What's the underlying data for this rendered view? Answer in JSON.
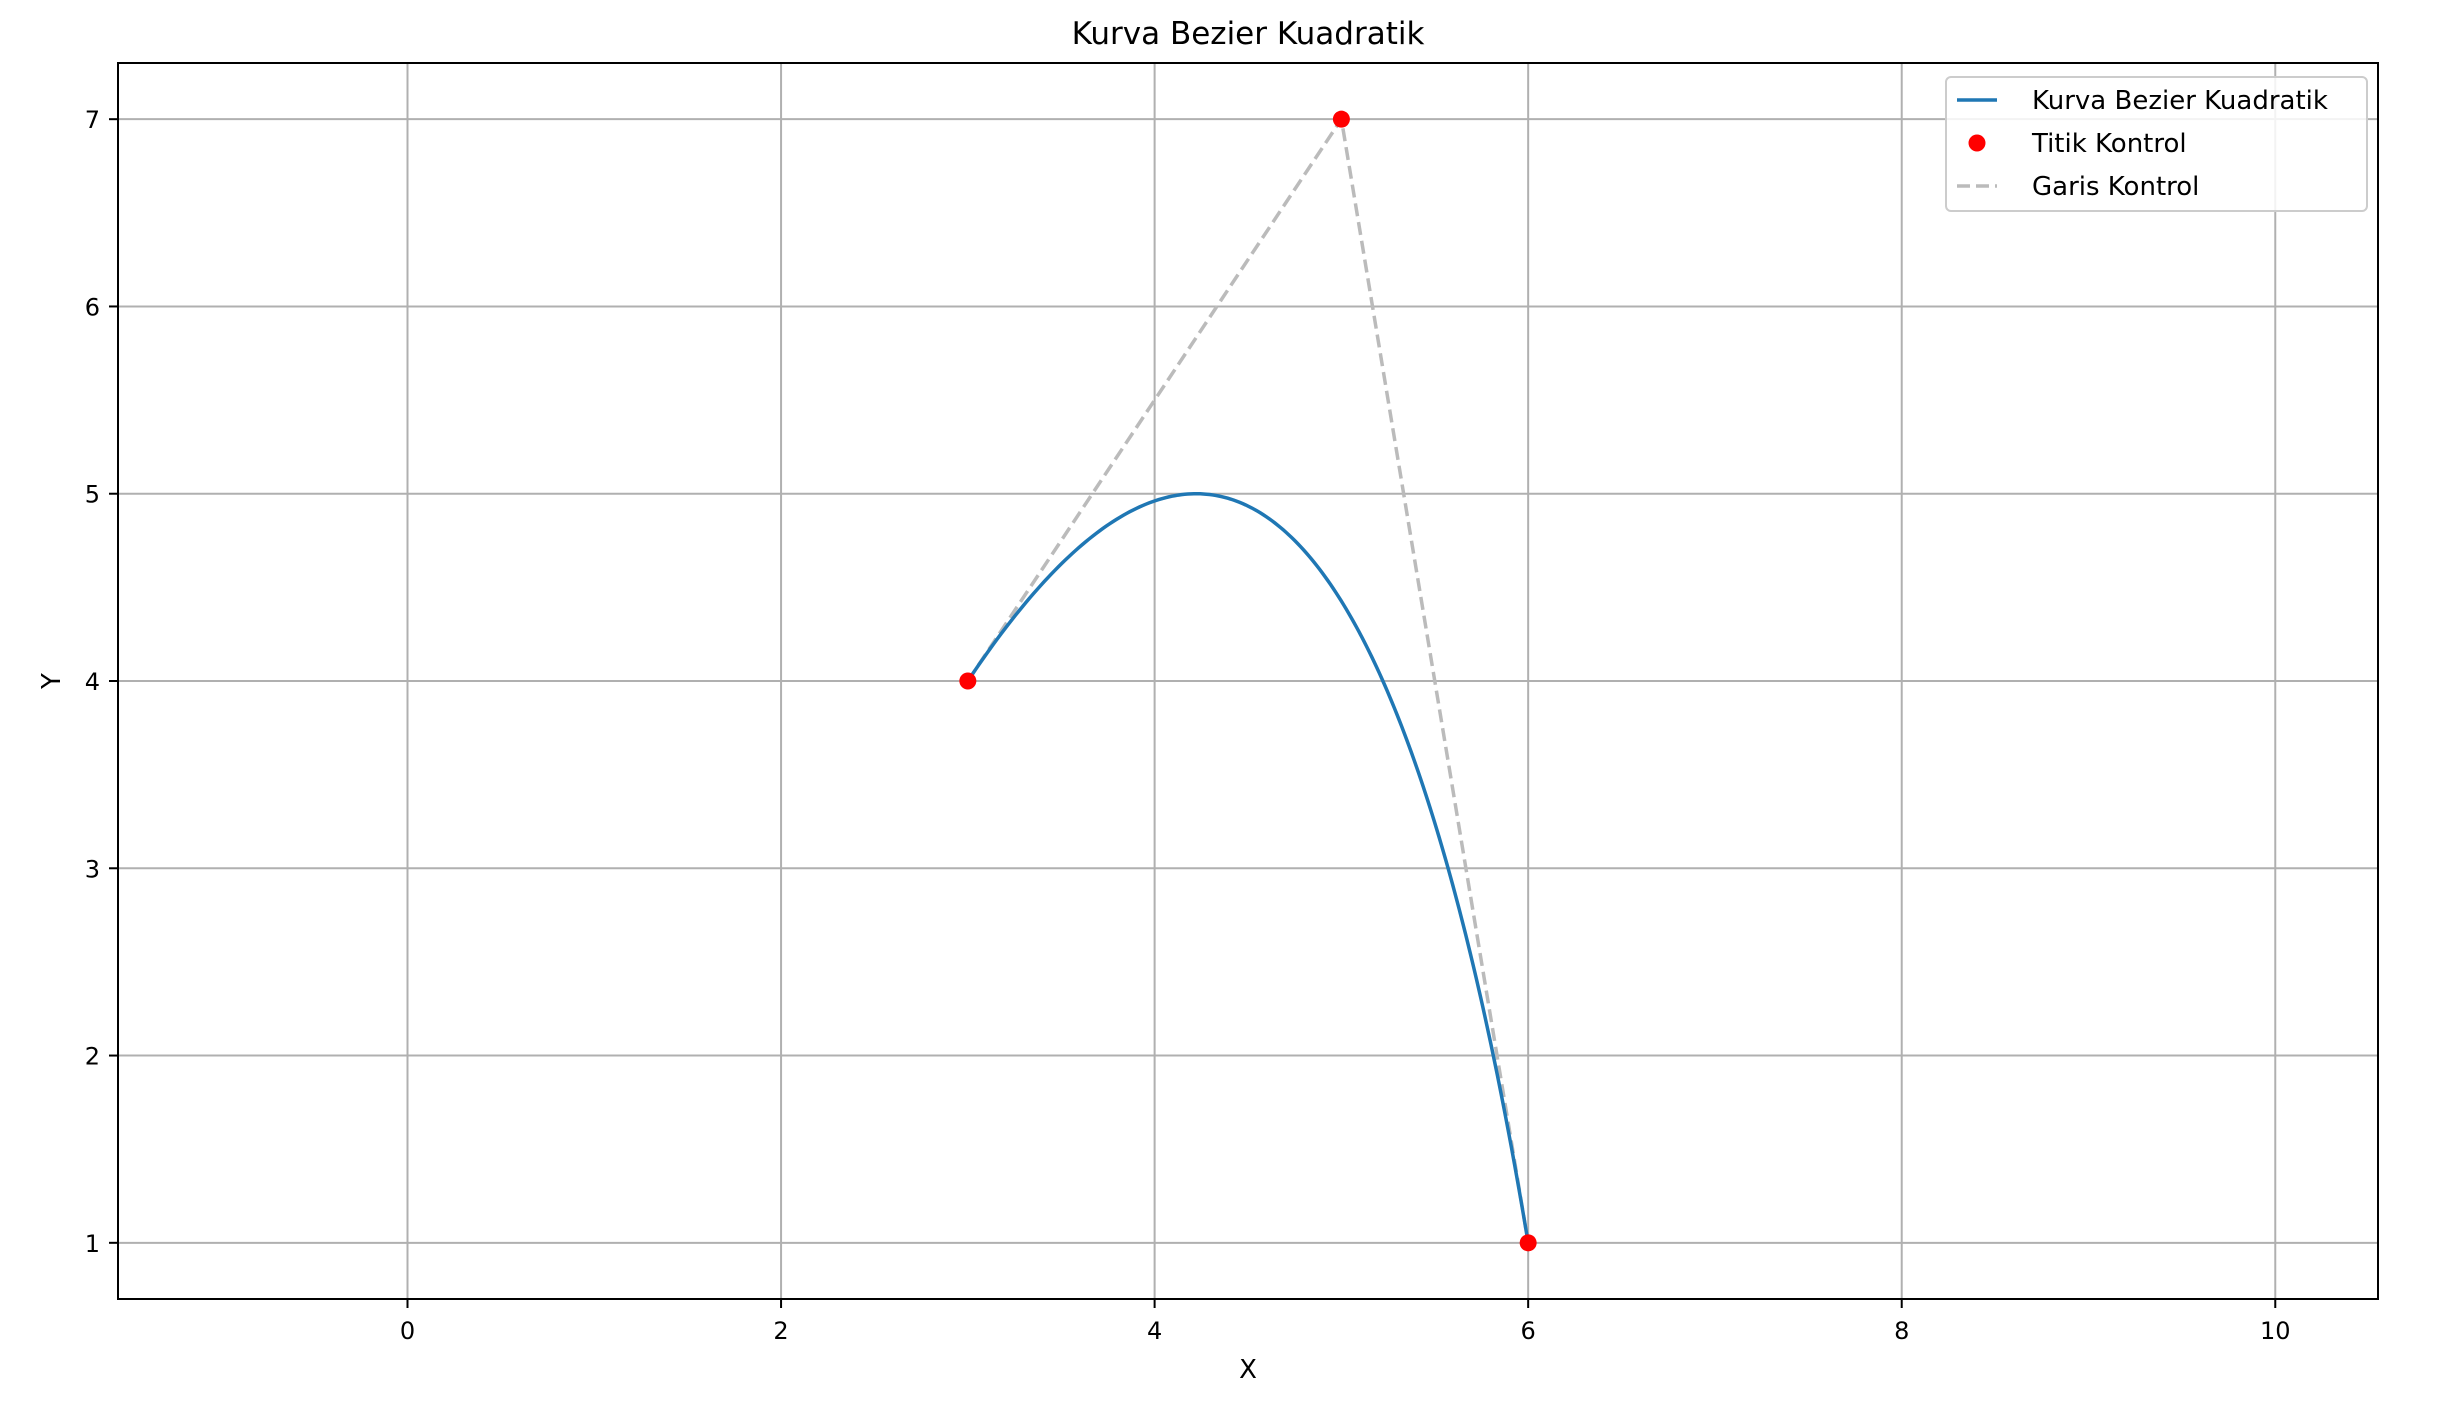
{
  "chart_data": {
    "type": "line",
    "title": "Kurva Bezier Kuadratik",
    "xlabel": "X",
    "ylabel": "Y",
    "xlim": [
      -1.55,
      10.55
    ],
    "ylim": [
      0.7,
      7.3
    ],
    "xticks": [
      0,
      2,
      4,
      6,
      8,
      10
    ],
    "yticks": [
      1,
      2,
      3,
      4,
      5,
      6,
      7
    ],
    "grid": true,
    "legend_position": "top-right",
    "control_points": [
      {
        "x": 3,
        "y": 4
      },
      {
        "x": 5,
        "y": 7
      },
      {
        "x": 6,
        "y": 1
      }
    ],
    "series": [
      {
        "name": "Kurva Bezier Kuadratik",
        "kind": "line",
        "color": "#1f77b4"
      },
      {
        "name": "Titik Kontrol",
        "kind": "scatter",
        "color": "#ff0000"
      },
      {
        "name": "Garis Kontrol",
        "kind": "dashed-line",
        "color": "#bbbbbb"
      }
    ]
  }
}
